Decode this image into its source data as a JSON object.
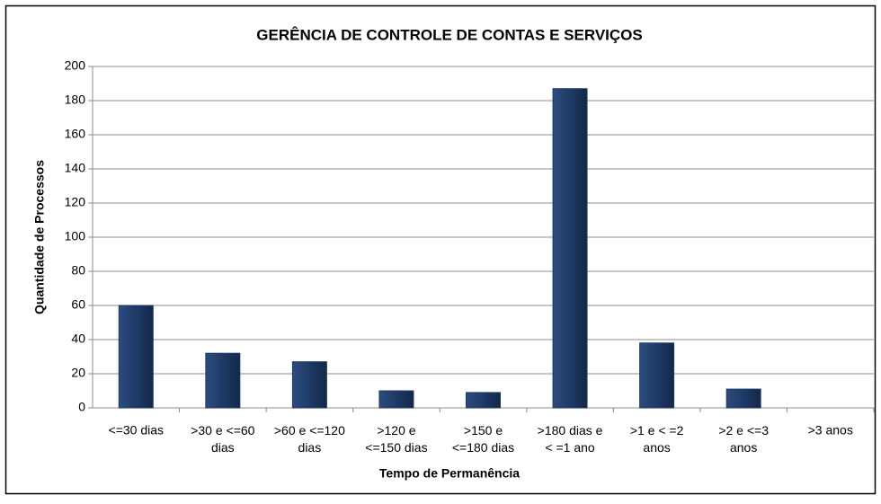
{
  "chart_data": {
    "type": "bar",
    "title": "GERÊNCIA DE CONTROLE DE CONTAS E SERVIÇOS",
    "x_label": "Tempo de Permanência",
    "y_label": "Quantidade de Processos",
    "categories": [
      "<=30 dias",
      ">30 e <=60\ndias",
      ">60 e <=120\ndias",
      ">120 e\n<=150 dias",
      ">150 e\n<=180 dias",
      ">180 dias e\n< =1 ano",
      ">1 e < =2\nanos",
      ">2 e <=3\nanos",
      ">3 anos"
    ],
    "values": [
      60,
      32,
      27,
      10,
      9,
      187,
      38,
      11,
      0
    ],
    "color": "#1f3a66",
    "ylim": [
      0,
      200
    ],
    "yticks": [
      0,
      20,
      40,
      60,
      80,
      100,
      120,
      140,
      160,
      180,
      200
    ],
    "grid": true
  }
}
